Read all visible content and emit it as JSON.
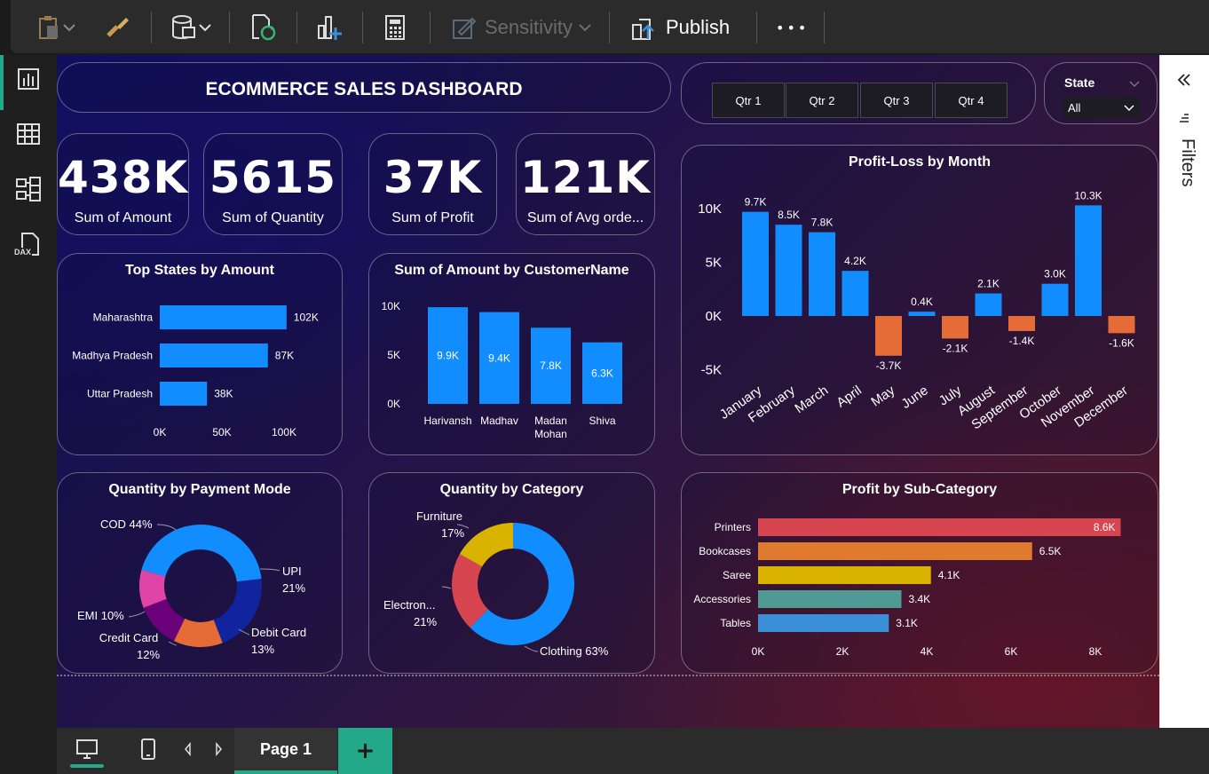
{
  "toolbar": {
    "sensitivity_label": "Sensitivity",
    "publish_label": "Publish",
    "more_label": "•••"
  },
  "leftrail": {
    "dax_label": "DAX"
  },
  "dashboard": {
    "title": "ECOMMERCE SALES DASHBOARD",
    "quarters": [
      "Qtr 1",
      "Qtr 2",
      "Qtr 3",
      "Qtr 4"
    ],
    "state_slicer": {
      "label": "State",
      "value": "All"
    },
    "kpis": [
      {
        "value": "438K",
        "label": "Sum of Amount"
      },
      {
        "value": "5615",
        "label": "Sum of Quantity"
      },
      {
        "value": "37K",
        "label": "Sum of Profit"
      },
      {
        "value": "121K",
        "label": "Sum of Avg orde..."
      }
    ],
    "colors": {
      "bar_blue": "#118dff",
      "negative_orange": "#e66c37",
      "printers": "#d64550",
      "bookcases": "#e07a2f",
      "saree": "#d9b300",
      "accessories": "#4f9a94",
      "tables": "#3a8fd6"
    }
  },
  "filters_pane": {
    "label": "Filters"
  },
  "pagebar": {
    "page_label": "Page 1",
    "add_label": "+"
  },
  "chart_data": [
    {
      "type": "bar",
      "orientation": "horizontal",
      "title": "Top States by Amount",
      "categories": [
        "Maharashtra",
        "Madhya Pradesh",
        "Uttar Pradesh"
      ],
      "values": [
        102,
        87,
        38
      ],
      "value_labels": [
        "102K",
        "87K",
        "38K"
      ],
      "xticks": [
        "0K",
        "50K",
        "100K"
      ],
      "xlim": [
        0,
        100
      ]
    },
    {
      "type": "bar",
      "title": "Sum of Amount by CustomerName",
      "categories": [
        "Harivansh",
        "Madhav",
        "Madan Mohan",
        "Shiva"
      ],
      "category_lines": [
        [
          "Harivansh"
        ],
        [
          "Madhav"
        ],
        [
          "Madan",
          "Mohan"
        ],
        [
          "Shiva"
        ]
      ],
      "values": [
        9.9,
        9.4,
        7.8,
        6.3
      ],
      "value_labels": [
        "9.9K",
        "9.4K",
        "7.8K",
        "6.3K"
      ],
      "yticks": [
        "10K",
        "5K",
        "0K"
      ],
      "ylim": [
        0,
        10
      ]
    },
    {
      "type": "bar",
      "title": "Profit-Loss by Month",
      "categories": [
        "January",
        "February",
        "March",
        "April",
        "May",
        "June",
        "July",
        "August",
        "September",
        "October",
        "November",
        "December"
      ],
      "values": [
        9.7,
        8.5,
        7.8,
        4.2,
        -3.7,
        0.4,
        -2.1,
        2.1,
        -1.4,
        3.0,
        10.3,
        -1.6
      ],
      "value_labels": [
        "9.7K",
        "8.5K",
        "7.8K",
        "4.2K",
        "-3.7K",
        "0.4K",
        "-2.1K",
        "2.1K",
        "-1.4K",
        "3.0K",
        "10.3K",
        "-1.6K"
      ],
      "yticks": [
        "10K",
        "5K",
        "0K",
        "-5K"
      ],
      "ylim": [
        -5,
        10
      ]
    },
    {
      "type": "pie",
      "title": "Quantity by Payment Mode",
      "labels": [
        "COD",
        "UPI",
        "Debit Card",
        "Credit Card",
        "EMI"
      ],
      "values": [
        44,
        21,
        13,
        12,
        10
      ],
      "colors": [
        "#118dff",
        "#12239e",
        "#e66c37",
        "#6b007b",
        "#e044a7"
      ],
      "label_text": [
        [
          "COD 44%"
        ],
        [
          "UPI",
          "21%"
        ],
        [
          "Debit Card",
          "13%"
        ],
        [
          "Credit Card",
          "12%"
        ],
        [
          "EMI 10%"
        ]
      ]
    },
    {
      "type": "pie",
      "title": "Quantity by Category",
      "labels": [
        "Clothing",
        "Electronics",
        "Furniture"
      ],
      "values": [
        63,
        21,
        17
      ],
      "colors": [
        "#118dff",
        "#d64550",
        "#d9b300"
      ],
      "label_text": [
        [
          "Clothing 63%"
        ],
        [
          "Electron...",
          "21%"
        ],
        [
          "Furniture",
          "17%"
        ]
      ]
    },
    {
      "type": "bar",
      "orientation": "horizontal",
      "title": "Profit by Sub-Category",
      "categories": [
        "Printers",
        "Bookcases",
        "Saree",
        "Accessories",
        "Tables"
      ],
      "values": [
        8.6,
        6.5,
        4.1,
        3.4,
        3.1
      ],
      "value_labels": [
        "8.6K",
        "6.5K",
        "4.1K",
        "3.4K",
        "3.1K"
      ],
      "colors": [
        "#d64550",
        "#e07a2f",
        "#d9b300",
        "#4f9a94",
        "#3a8fd6"
      ],
      "xticks": [
        "0K",
        "2K",
        "4K",
        "6K",
        "8K"
      ],
      "xlim": [
        0,
        8
      ]
    }
  ]
}
